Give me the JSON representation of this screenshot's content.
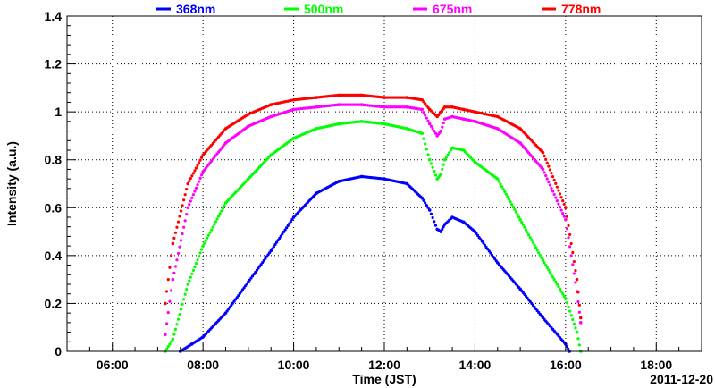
{
  "chart_data": {
    "type": "scatter",
    "xlabel": "Time (JST)",
    "ylabel": "Intensity (a.u.)",
    "date_label": "2011-12-20",
    "xlim": [
      5.0,
      19.0
    ],
    "ylim": [
      0,
      1.4
    ],
    "x_ticks": [
      6,
      8,
      10,
      12,
      14,
      16,
      18
    ],
    "x_tick_labels": [
      "06:00",
      "08:00",
      "10:00",
      "12:00",
      "14:00",
      "16:00",
      "18:00"
    ],
    "y_ticks": [
      0,
      0.2,
      0.4,
      0.6,
      0.8,
      1,
      1.2,
      1.4
    ],
    "y_tick_labels": [
      "0",
      "0.2",
      "0.4",
      "0.6",
      "0.8",
      "1",
      "1.2",
      "1.4"
    ],
    "grid": true,
    "legend_position": "top",
    "series": [
      {
        "name": "368nm",
        "color": "#0000ff",
        "x": [
          "07:30",
          "07:45",
          "08:00",
          "08:30",
          "09:00",
          "09:30",
          "10:00",
          "10:30",
          "11:00",
          "11:30",
          "12:00",
          "12:30",
          "12:50",
          "13:00",
          "13:10",
          "13:15",
          "13:20",
          "13:30",
          "13:45",
          "14:00",
          "14:30",
          "15:00",
          "15:30",
          "16:00",
          "16:05"
        ],
        "y": [
          0.0,
          0.03,
          0.06,
          0.16,
          0.29,
          0.42,
          0.56,
          0.66,
          0.71,
          0.73,
          0.72,
          0.7,
          0.64,
          0.59,
          0.51,
          0.5,
          0.53,
          0.56,
          0.54,
          0.5,
          0.37,
          0.26,
          0.14,
          0.03,
          0.0
        ]
      },
      {
        "name": "500nm",
        "color": "#00ff00",
        "x": [
          "07:10",
          "07:20",
          "07:40",
          "08:00",
          "08:30",
          "09:00",
          "09:30",
          "10:00",
          "10:30",
          "11:00",
          "11:30",
          "12:00",
          "12:30",
          "12:50",
          "13:00",
          "13:10",
          "13:15",
          "13:20",
          "13:30",
          "13:45",
          "14:00",
          "14:30",
          "15:00",
          "15:30",
          "16:00",
          "16:15",
          "16:20"
        ],
        "y": [
          0.0,
          0.05,
          0.28,
          0.44,
          0.62,
          0.72,
          0.82,
          0.89,
          0.93,
          0.95,
          0.96,
          0.95,
          0.93,
          0.91,
          0.8,
          0.72,
          0.74,
          0.8,
          0.85,
          0.84,
          0.79,
          0.72,
          0.55,
          0.38,
          0.22,
          0.08,
          0.0
        ]
      },
      {
        "name": "675nm",
        "color": "#ff00ff",
        "x": [
          "07:10",
          "07:20",
          "07:40",
          "08:00",
          "08:30",
          "09:00",
          "09:30",
          "10:00",
          "10:30",
          "11:00",
          "11:30",
          "12:00",
          "12:30",
          "12:50",
          "13:00",
          "13:10",
          "13:15",
          "13:20",
          "13:30",
          "13:45",
          "14:00",
          "14:30",
          "15:00",
          "15:30",
          "16:00",
          "16:15",
          "16:20"
        ],
        "y": [
          0.07,
          0.3,
          0.6,
          0.75,
          0.87,
          0.94,
          0.98,
          1.01,
          1.02,
          1.03,
          1.03,
          1.02,
          1.02,
          1.01,
          0.95,
          0.9,
          0.92,
          0.97,
          0.98,
          0.97,
          0.96,
          0.93,
          0.87,
          0.76,
          0.55,
          0.25,
          0.12
        ]
      },
      {
        "name": "778nm",
        "color": "#ff0000",
        "x": [
          "07:10",
          "07:20",
          "07:40",
          "08:00",
          "08:30",
          "09:00",
          "09:30",
          "10:00",
          "10:30",
          "11:00",
          "11:30",
          "12:00",
          "12:30",
          "12:50",
          "13:00",
          "13:10",
          "13:15",
          "13:20",
          "13:30",
          "13:45",
          "14:00",
          "14:30",
          "15:00",
          "15:30",
          "16:00",
          "16:15",
          "16:20"
        ],
        "y": [
          0.2,
          0.45,
          0.7,
          0.82,
          0.93,
          0.99,
          1.03,
          1.05,
          1.06,
          1.07,
          1.07,
          1.06,
          1.06,
          1.05,
          1.01,
          0.98,
          1.0,
          1.02,
          1.02,
          1.01,
          1.0,
          0.98,
          0.93,
          0.83,
          0.6,
          0.3,
          0.14
        ]
      }
    ]
  }
}
